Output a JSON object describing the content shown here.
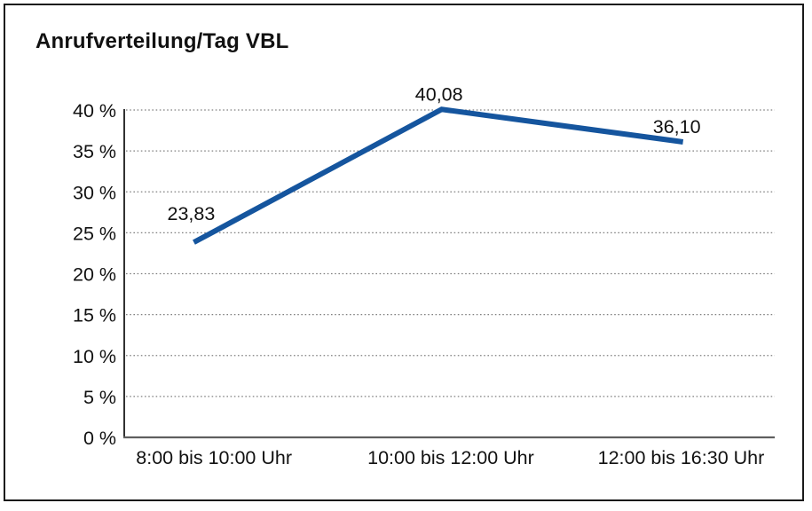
{
  "frame": {
    "background": "#ffffff",
    "border_color": "#1a1a1a"
  },
  "chart_data": {
    "type": "line",
    "title": "Anrufverteilung/Tag VBL",
    "categories": [
      "8:00 bis 10:00 Uhr",
      "10:00 bis 12:00 Uhr",
      "12:00 bis 16:30 Uhr"
    ],
    "values": [
      23.83,
      40.08,
      36.1
    ],
    "value_labels": [
      "23,83",
      "40,08",
      "36,10"
    ],
    "y_tick_values": [
      0,
      5,
      10,
      15,
      20,
      25,
      30,
      35,
      40
    ],
    "y_tick_labels": [
      "0 %",
      "5 %",
      "10 %",
      "15 %",
      "20 %",
      "25 %",
      "30 %",
      "35 %",
      "40 %"
    ],
    "ylim": [
      0,
      40
    ],
    "xlabel": "",
    "ylabel": "",
    "grid": "horizontal-dotted",
    "legend": "none",
    "line_color": "#15559E",
    "gridline_color": "#808080",
    "y_axis_color": "#1a1a1a",
    "x_axis_color": "#5f5f5f"
  }
}
